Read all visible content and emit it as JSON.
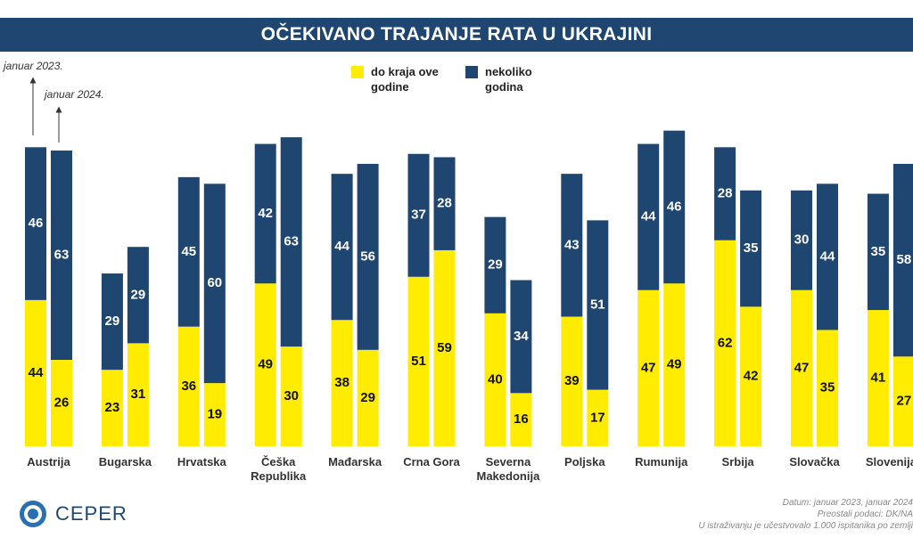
{
  "title": "OČEKIVANO TRAJANJE RATA U UKRAJINI",
  "legend": [
    {
      "label": "do kraja ove\ngodine",
      "color": "#ffec00"
    },
    {
      "label": "nekoliko\ngodina",
      "color": "#1f4670"
    }
  ],
  "notes": {
    "year1": "januar 2023.",
    "year2": "januar 2024."
  },
  "footer": {
    "line1": "Datum: januar 2023, januar 2024",
    "line2": "Preostali podaci: DK/NA",
    "line3": "U istraživanju je učestvovalo 1.000 ispitanika po zemlji"
  },
  "logo": {
    "text": "CEPER"
  },
  "chart_data": {
    "type": "bar",
    "stacked": true,
    "categories": [
      "Austrija",
      "Bugarska",
      "Hrvatska",
      "Češka\nRepublika",
      "Mađarska",
      "Crna Gora",
      "Severna\nMakedonija",
      "Poljska",
      "Rumunija",
      "Srbija",
      "Slovačka",
      "Slovenija"
    ],
    "groups": [
      "januar 2023.",
      "januar 2024."
    ],
    "series": [
      {
        "name": "do kraja ove godine",
        "color": "#ffec00",
        "values_2023": [
          44,
          23,
          36,
          49,
          38,
          51,
          40,
          39,
          47,
          62,
          47,
          41
        ],
        "values_2024": [
          26,
          31,
          19,
          30,
          29,
          59,
          16,
          17,
          49,
          42,
          35,
          27
        ]
      },
      {
        "name": "nekoliko godina",
        "color": "#1f4670",
        "values_2023": [
          46,
          29,
          45,
          42,
          44,
          37,
          29,
          43,
          44,
          28,
          30,
          35
        ],
        "values_2024": [
          63,
          29,
          60,
          63,
          56,
          28,
          34,
          51,
          46,
          35,
          44,
          58
        ]
      }
    ],
    "ylim": [
      0,
      100
    ],
    "grid": false,
    "legend_position": "top"
  }
}
